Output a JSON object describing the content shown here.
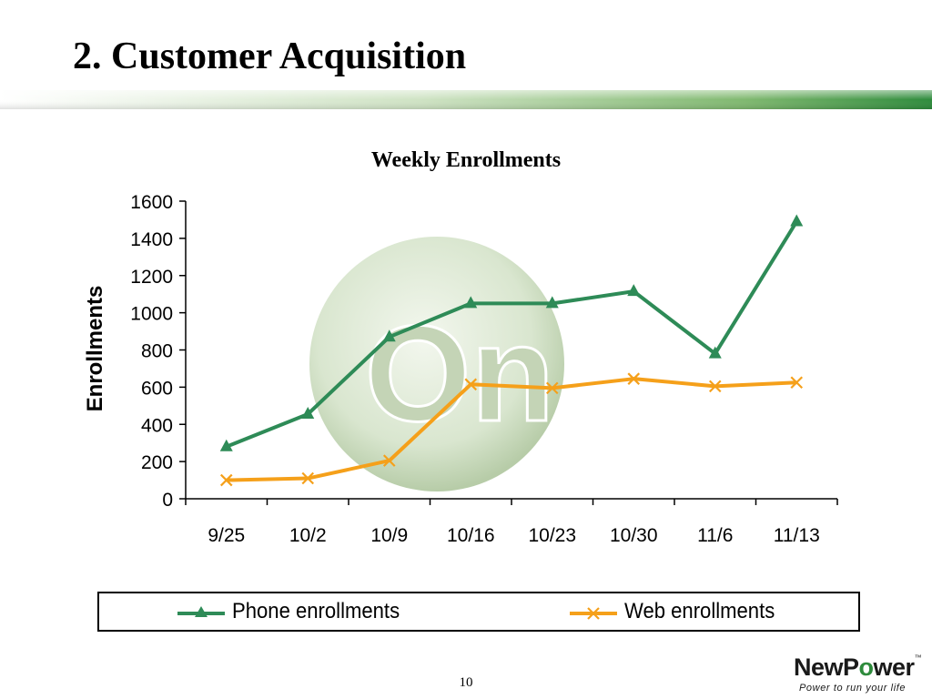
{
  "slide": {
    "title": "2.  Customer Acquisition",
    "page_number": "10"
  },
  "logo": {
    "name_prefix": "NewP",
    "name_mark": "o",
    "name_suffix": "wer",
    "trademark": "™",
    "tagline": "Power to run your life"
  },
  "watermark": {
    "text": "On"
  },
  "colors": {
    "title_bar": "#2e8b3c",
    "phone_series": "#2e8b57",
    "web_series": "#f5a01a",
    "watermark": "#c9d9bb"
  },
  "chart_data": {
    "type": "line",
    "title": "Weekly Enrollments",
    "xlabel": "",
    "ylabel": "Enrollments",
    "categories": [
      "9/25",
      "10/2",
      "10/9",
      "10/16",
      "10/23",
      "10/30",
      "11/6",
      "11/13"
    ],
    "ylim": [
      0,
      1600
    ],
    "yticks": [
      0,
      200,
      400,
      600,
      800,
      1000,
      1200,
      1400,
      1600
    ],
    "grid": false,
    "legend_position": "bottom",
    "series": [
      {
        "name": "Phone enrollments",
        "marker": "triangle",
        "values": [
          280,
          455,
          870,
          1050,
          1050,
          1115,
          780,
          1490
        ]
      },
      {
        "name": "Web enrollments",
        "marker": "x",
        "values": [
          100,
          110,
          205,
          615,
          595,
          645,
          605,
          625
        ]
      }
    ]
  }
}
